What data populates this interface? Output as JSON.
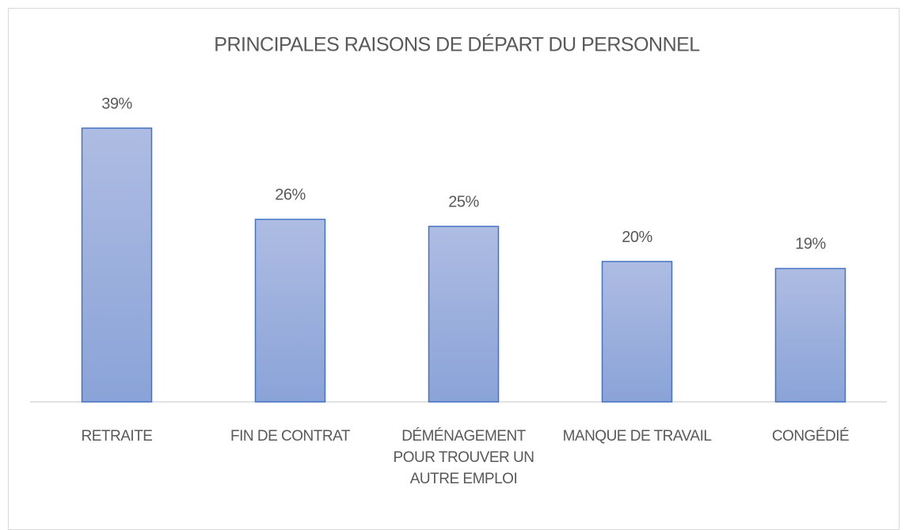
{
  "chart_data": {
    "type": "bar",
    "title": "PRINCIPALES RAISONS DE DÉPART DU PERSONNEL",
    "categories": [
      "RETRAITE",
      "FIN DE CONTRAT",
      "DÉMÉNAGEMENT POUR TROUVER UN AUTRE EMPLOI",
      "MANQUE DE TRAVAIL",
      "CONGÉDIÉ"
    ],
    "values": [
      39,
      26,
      25,
      20,
      19
    ],
    "value_labels": [
      "39%",
      "26%",
      "25%",
      "20%",
      "19%"
    ],
    "color": "#4472c4"
  }
}
